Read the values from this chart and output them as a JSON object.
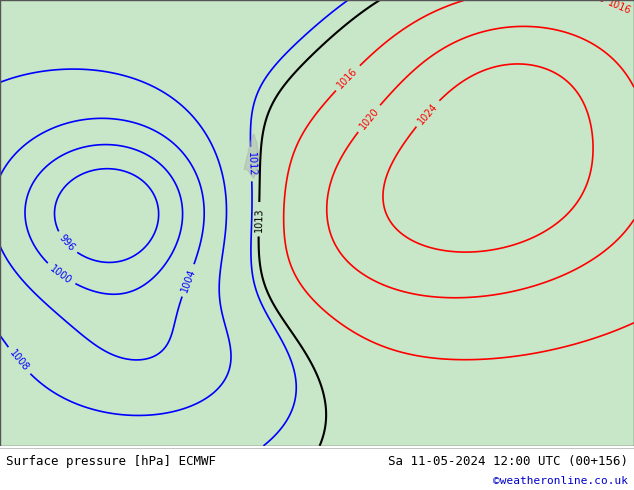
{
  "title_left": "Surface pressure [hPa] ECMWF",
  "title_right": "Sa 11-05-2024 12:00 UTC (00+156)",
  "title_right2": "©weatheronline.co.uk",
  "bg_color": "#c8e6c8",
  "land_color": "#c8e6c8",
  "sea_color": "#c8dcff",
  "bottom_bar_color": "#ffffff",
  "text_color": "#000000",
  "title_color_left": "#000000",
  "title_color_right": "#000000",
  "credit_color": "#0000cc",
  "figsize": [
    6.34,
    4.9
  ],
  "dpi": 100
}
